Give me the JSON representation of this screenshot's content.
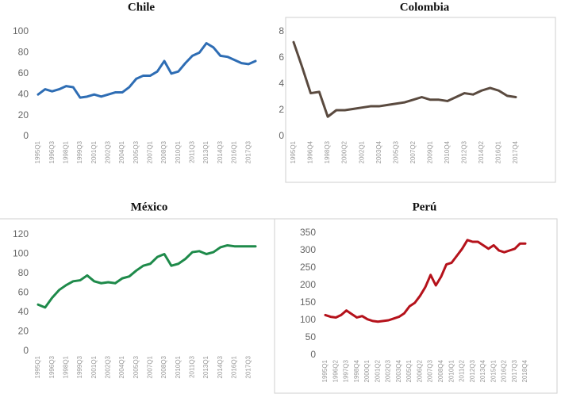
{
  "chart_data": [
    {
      "type": "line",
      "title": "Chile",
      "categories": [
        "1995Q1",
        null,
        "1996Q3",
        null,
        "1998Q1",
        null,
        "1999Q3",
        null,
        "2001Q1",
        null,
        "2002Q3",
        null,
        "2004Q1",
        null,
        "2005Q3",
        null,
        "2007Q1",
        null,
        "2008Q3",
        null,
        "2010Q1",
        null,
        "2011Q3",
        null,
        "2013Q1",
        null,
        "2014Q3",
        null,
        "2016Q1",
        null,
        "2017Q3",
        null
      ],
      "series": [
        {
          "name": "Chile",
          "color": "#2e6db4",
          "values": [
            40,
            45,
            43,
            45,
            48,
            47,
            37,
            38,
            40,
            38,
            40,
            42,
            42,
            47,
            55,
            58,
            58,
            62,
            72,
            60,
            62,
            70,
            77,
            80,
            89,
            85,
            77,
            76,
            73,
            70,
            69,
            72
          ]
        }
      ],
      "ylim": [
        0,
        100
      ],
      "yticks": [
        0,
        20,
        40,
        60,
        80,
        100
      ]
    },
    {
      "type": "line",
      "title": "Colombia",
      "categories": [
        "1995Q1",
        null,
        "1996Q4",
        null,
        "1998Q3",
        null,
        "2000Q2",
        null,
        "2002Q1",
        null,
        "2003Q4",
        null,
        "2005Q3",
        null,
        "2007Q2",
        null,
        "2009Q1",
        null,
        "2010Q4",
        null,
        "2012Q3",
        null,
        "2014Q2",
        null,
        "2016Q1",
        null,
        "2017Q4"
      ],
      "series": [
        {
          "name": "Colombia",
          "color": "#5a4a3f",
          "values": [
            7.2,
            5.3,
            3.3,
            3.4,
            1.5,
            2.0,
            2.0,
            2.1,
            2.2,
            2.3,
            2.3,
            2.4,
            2.5,
            2.6,
            2.8,
            3.0,
            2.8,
            2.8,
            2.7,
            3.0,
            3.3,
            3.2,
            3.5,
            3.7,
            3.5,
            3.1,
            3.0
          ]
        }
      ],
      "ylim": [
        0,
        8
      ],
      "yticks": [
        0,
        2,
        4,
        6,
        8
      ]
    },
    {
      "type": "line",
      "title": "México",
      "categories": [
        "1995Q1",
        null,
        "1996Q3",
        null,
        "1998Q1",
        null,
        "1999Q3",
        null,
        "2001Q1",
        null,
        "2002Q3",
        null,
        "2004Q1",
        null,
        "2005Q3",
        null,
        "2007Q1",
        null,
        "2008Q3",
        null,
        "2010Q1",
        null,
        "2011Q3",
        null,
        "2013Q1",
        null,
        "2014Q3",
        null,
        "2016Q1",
        null,
        "2017Q3",
        null
      ],
      "series": [
        {
          "name": "México",
          "color": "#1e8a4a",
          "values": [
            48,
            45,
            55,
            63,
            68,
            72,
            73,
            78,
            72,
            70,
            71,
            70,
            75,
            77,
            83,
            88,
            90,
            97,
            100,
            88,
            90,
            95,
            102,
            103,
            100,
            102,
            107,
            109,
            108,
            108,
            108,
            108
          ]
        }
      ],
      "ylim": [
        0,
        120
      ],
      "yticks": [
        0,
        20,
        40,
        60,
        80,
        100,
        120
      ]
    },
    {
      "type": "line",
      "title": "Perú",
      "categories": [
        "1995Q1",
        null,
        "1996Q2",
        null,
        "1997Q3",
        null,
        "1998Q4",
        null,
        "2000Q1",
        null,
        "2001Q2",
        null,
        "2002Q3",
        null,
        "2003Q4",
        null,
        "2005Q1",
        null,
        "2006Q2",
        null,
        "2007Q3",
        null,
        "2008Q4",
        null,
        "2010Q1",
        null,
        "2011Q2",
        null,
        "2012Q3",
        null,
        "2013Q4",
        null,
        "2015Q1",
        null,
        "2016Q2",
        null,
        "2017Q3",
        null,
        "2018Q4"
      ],
      "series": [
        {
          "name": "Perú",
          "color": "#b5121b",
          "values": [
            115,
            110,
            108,
            115,
            128,
            118,
            108,
            112,
            103,
            98,
            96,
            98,
            100,
            105,
            110,
            120,
            140,
            150,
            170,
            195,
            230,
            200,
            225,
            260,
            265,
            285,
            305,
            330,
            325,
            325,
            315,
            305,
            315,
            300,
            295,
            300,
            305,
            320,
            320
          ]
        }
      ],
      "ylim": [
        0,
        350
      ],
      "yticks": [
        0,
        50,
        100,
        150,
        200,
        250,
        300,
        350
      ]
    }
  ]
}
